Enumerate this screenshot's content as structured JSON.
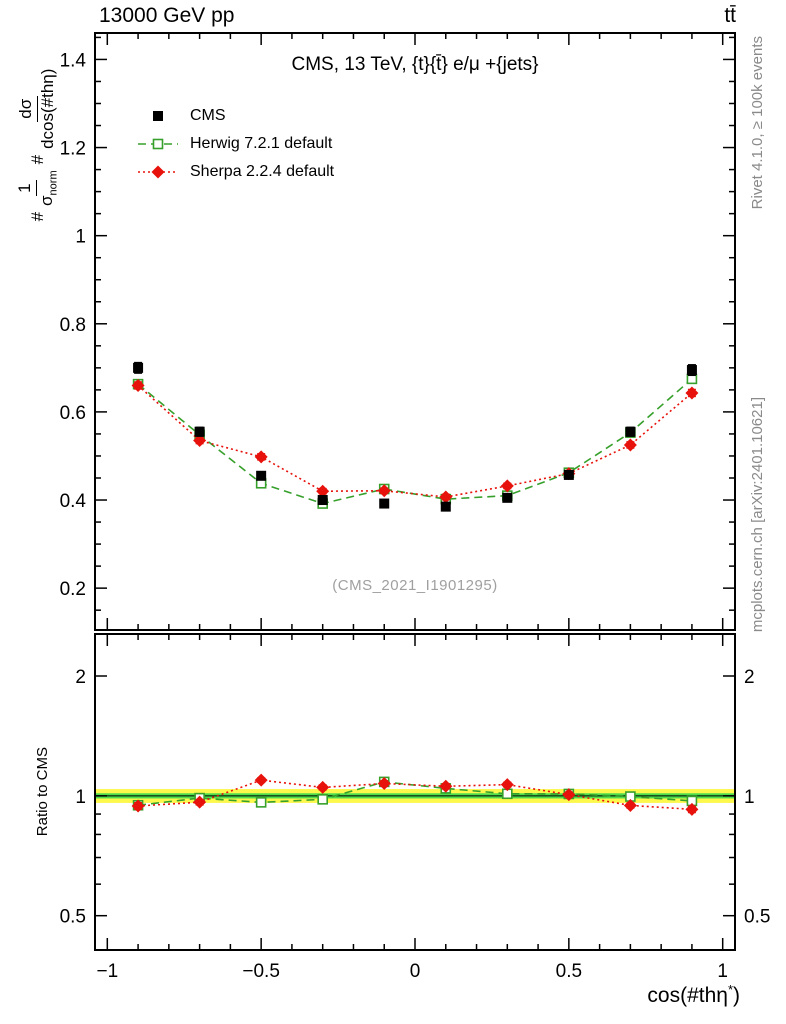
{
  "header": {
    "left": "13000 GeV pp",
    "right": "tt̄"
  },
  "side_notes": {
    "top": "Rivet 4.1.0, ≥ 100k events",
    "bottom": "mcplots.cern.ch [arXiv:2401.10621]"
  },
  "legend": {
    "items": [
      {
        "label": "CMS"
      },
      {
        "label": "Herwig 7.2.1 default"
      },
      {
        "label": "Sherpa 2.2.4 default"
      }
    ]
  },
  "chart_data": {
    "type": "line",
    "title": "CMS, 13 TeV, {t}{t̄} e/μ +{jets}",
    "watermark": "(CMS_2021_I1901295)",
    "xlabel": {
      "base": "cos(#thη",
      "sup": "*",
      "close": ")"
    },
    "ylabel_parts": {
      "hash1": "#",
      "num1": "1",
      "den1_base": "σ",
      "den1_sub": "norm",
      "hash2": "#",
      "num2": "dσ",
      "den2": "dcos(#thη)"
    },
    "ratio_ylabel": "Ratio to CMS",
    "x": [
      -0.9,
      -0.7,
      -0.5,
      -0.3,
      -0.1,
      0.1,
      0.3,
      0.5,
      0.7,
      0.9
    ],
    "xlim": [
      -1.04,
      1.04
    ],
    "x_major_ticks": [
      -1,
      -0.5,
      0,
      0.5,
      1
    ],
    "main_panel": {
      "ylim": [
        0.105,
        1.46
      ],
      "y_major_ticks": [
        0.2,
        0.4,
        0.6,
        0.8,
        1,
        1.2,
        1.4
      ],
      "series": [
        {
          "name": "CMS",
          "color_key": "cms",
          "marker": "square-filled",
          "line": "none",
          "values": [
            0.7,
            0.555,
            0.455,
            0.4,
            0.392,
            0.385,
            0.405,
            0.457,
            0.555,
            0.695
          ],
          "errors": [
            0.012,
            0.01,
            0.009,
            0.008,
            0.008,
            0.008,
            0.008,
            0.009,
            0.01,
            0.012
          ]
        },
        {
          "name": "Herwig 7.2.1 default",
          "color_key": "herwig",
          "marker": "square-open",
          "line": "dashed",
          "values": [
            0.663,
            0.548,
            0.438,
            0.392,
            0.425,
            0.402,
            0.41,
            0.462,
            0.553,
            0.675
          ],
          "errors": [
            0.008,
            0.007,
            0.007,
            0.006,
            0.006,
            0.006,
            0.006,
            0.007,
            0.007,
            0.008
          ]
        },
        {
          "name": "Sherpa 2.2.4 default",
          "color_key": "sherpa",
          "marker": "diamond-filled",
          "line": "dotted",
          "values": [
            0.66,
            0.535,
            0.498,
            0.42,
            0.421,
            0.407,
            0.432,
            0.46,
            0.525,
            0.643
          ],
          "errors": [
            0.008,
            0.007,
            0.007,
            0.006,
            0.006,
            0.006,
            0.006,
            0.007,
            0.007,
            0.008
          ]
        }
      ]
    },
    "ratio_panel": {
      "scale": "log",
      "ylim": [
        0.41,
        2.55
      ],
      "y_major_ticks": [
        0.5,
        1,
        2
      ],
      "y_minor_ticks": [
        0.6,
        0.7,
        0.8,
        0.9
      ],
      "band_yellow": [
        0.96,
        1.04
      ],
      "band_green": [
        0.985,
        1.015
      ],
      "series": [
        {
          "name": "Herwig 7.2.1 default",
          "color_key": "herwig",
          "marker": "square-open",
          "line": "dashed",
          "values": [
            0.947,
            0.987,
            0.963,
            0.98,
            1.084,
            1.044,
            1.012,
            1.011,
            0.996,
            0.971
          ],
          "errors": [
            0.018,
            0.015,
            0.014,
            0.015,
            0.017,
            0.016,
            0.015,
            0.015,
            0.014,
            0.017
          ]
        },
        {
          "name": "Sherpa 2.2.4 default",
          "color_key": "sherpa",
          "marker": "diamond-filled",
          "line": "dotted",
          "values": [
            0.943,
            0.964,
            1.095,
            1.05,
            1.074,
            1.057,
            1.067,
            1.007,
            0.946,
            0.925
          ],
          "errors": [
            0.018,
            0.015,
            0.014,
            0.015,
            0.017,
            0.016,
            0.015,
            0.015,
            0.014,
            0.017
          ]
        }
      ]
    },
    "colors": {
      "cms": "#000000",
      "herwig": "#36a02b",
      "sherpa": "#e8120c",
      "band_yellow": "#fcf84c",
      "band_green": "#4cdc4c",
      "note_gray": "#8a8a8a",
      "watermark_gray": "#a0a0a0"
    }
  }
}
